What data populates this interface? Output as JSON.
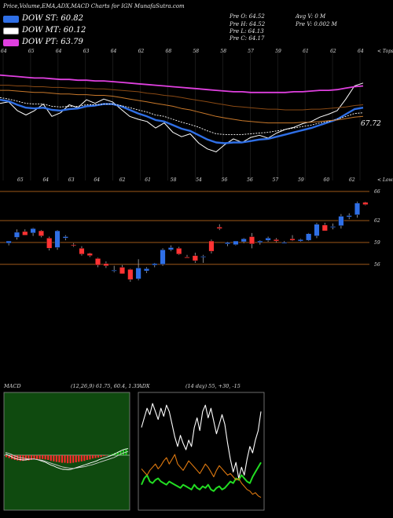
{
  "header": {
    "title": "Price,Volume,EMA,ADX,MACD Charts for IGN",
    "site": "MunafaSutra.com",
    "stats": {
      "open": "Pre  O: 64.52",
      "high": "Pre  H: 64.52",
      "low": "Pre  L: 64.13",
      "close": "Pre  C: 64.17",
      "avg_vol": "Avg V: 0  M",
      "pre_vol": "Pre  V: 0.002  M"
    }
  },
  "legend": [
    {
      "label": "DOW ST: 60.82",
      "color": "#2f6fe6"
    },
    {
      "label": "DOW MT: 60.12",
      "color": "#ffffff"
    },
    {
      "label": "DOW PT: 63.79",
      "color": "#e040e0"
    }
  ],
  "colors": {
    "bg": "#000000",
    "up": "#2f6fe6",
    "down": "#ff3333",
    "grid_orange": "#b5651d",
    "macd_bg": "#0f4a0f",
    "adx_bg": "#000000"
  },
  "chart_data": [
    {
      "type": "line",
      "name": "ema-panel",
      "corner_label": "< Tops",
      "end_value_label": "67.72",
      "top_tick_labels": [
        "64",
        "65",
        "64",
        "63",
        "64",
        "62",
        "68",
        "58",
        "58",
        "57",
        "59",
        "61",
        "62",
        "64"
      ],
      "bottom_tick_labels": [
        "65",
        "64",
        "63",
        "64",
        "62",
        "61",
        "58",
        "54",
        "56",
        "56",
        "57",
        "59",
        "60",
        "62"
      ],
      "series": [
        {
          "name": "price",
          "color": "#ffffff",
          "values": [
            61.4,
            61.6,
            60.4,
            59.8,
            60.4,
            61.3,
            59.6,
            60.1,
            61.2,
            60.8,
            61.9,
            61.4,
            62.0,
            61.6,
            60.6,
            59.6,
            59.2,
            58.9,
            58.0,
            58.7,
            57.4,
            56.8,
            57.2,
            55.9,
            55.1,
            54.7,
            55.7,
            56.5,
            56.0,
            56.7,
            57.0,
            56.6,
            57.3,
            57.8,
            58.1,
            58.6,
            58.9,
            59.5,
            59.9,
            60.4,
            62.0,
            63.8,
            64.2
          ]
        },
        {
          "name": "dow-st",
          "color": "#2f6fe6",
          "values": [
            61.9,
            61.7,
            61.2,
            60.8,
            60.7,
            60.8,
            60.5,
            60.4,
            60.6,
            60.7,
            61.0,
            61.1,
            61.3,
            61.3,
            61.0,
            60.5,
            60.0,
            59.6,
            59.1,
            58.9,
            58.4,
            57.9,
            57.6,
            57.0,
            56.4,
            56.0,
            55.9,
            56.0,
            56.0,
            56.2,
            56.4,
            56.5,
            56.8,
            57.1,
            57.4,
            57.7,
            58.0,
            58.4,
            58.8,
            59.2,
            59.9,
            60.6,
            60.8
          ]
        },
        {
          "name": "dow-mt",
          "color": "#ffffff",
          "values": [
            62.2,
            62.0,
            61.7,
            61.4,
            61.3,
            61.3,
            61.0,
            60.9,
            61.0,
            61.0,
            61.2,
            61.2,
            61.3,
            61.3,
            61.1,
            60.8,
            60.5,
            60.2,
            59.8,
            59.6,
            59.2,
            58.8,
            58.5,
            58.1,
            57.6,
            57.2,
            57.1,
            57.1,
            57.1,
            57.2,
            57.3,
            57.4,
            57.6,
            57.8,
            58.0,
            58.2,
            58.4,
            58.7,
            58.9,
            59.2,
            59.6,
            60.0,
            60.1
          ]
        },
        {
          "name": "dow-pt",
          "color": "#e040e0",
          "values": [
            65.3,
            65.2,
            65.1,
            65.0,
            64.9,
            64.9,
            64.8,
            64.7,
            64.7,
            64.6,
            64.6,
            64.5,
            64.5,
            64.4,
            64.3,
            64.2,
            64.1,
            64.0,
            63.9,
            63.8,
            63.7,
            63.6,
            63.5,
            63.4,
            63.3,
            63.2,
            63.1,
            63.0,
            63.0,
            62.9,
            62.9,
            62.9,
            62.9,
            62.9,
            63.0,
            63.0,
            63.1,
            63.2,
            63.2,
            63.3,
            63.5,
            63.7,
            63.8
          ]
        },
        {
          "name": "ema-orange-1",
          "color": "#c8782a",
          "values": [
            63.2,
            63.2,
            63.1,
            63.0,
            62.9,
            62.9,
            62.8,
            62.7,
            62.7,
            62.6,
            62.6,
            62.5,
            62.5,
            62.4,
            62.2,
            62.0,
            61.8,
            61.6,
            61.4,
            61.2,
            61.0,
            60.7,
            60.5,
            60.2,
            59.9,
            59.6,
            59.4,
            59.2,
            59.0,
            58.9,
            58.8,
            58.7,
            58.7,
            58.7,
            58.7,
            58.8,
            58.8,
            58.9,
            59.0,
            59.1,
            59.3,
            59.5,
            59.6
          ]
        },
        {
          "name": "ema-orange-2",
          "color": "#8a4a14",
          "values": [
            63.9,
            63.9,
            63.8,
            63.8,
            63.7,
            63.7,
            63.6,
            63.6,
            63.5,
            63.5,
            63.5,
            63.4,
            63.4,
            63.3,
            63.2,
            63.1,
            63.0,
            62.8,
            62.7,
            62.5,
            62.4,
            62.2,
            62.0,
            61.8,
            61.6,
            61.4,
            61.2,
            61.0,
            60.9,
            60.8,
            60.7,
            60.6,
            60.6,
            60.5,
            60.5,
            60.5,
            60.6,
            60.6,
            60.7,
            60.8,
            60.9,
            61.1,
            61.2
          ]
        }
      ],
      "ylim": [
        54,
        67
      ]
    },
    {
      "type": "bar",
      "name": "candle-panel",
      "corner_label": "< Lows",
      "right_tick_labels": [
        "66",
        "62",
        "59",
        "56"
      ],
      "ylim": [
        53.5,
        67.5
      ],
      "candles": [
        {
          "o": 58.9,
          "h": 59.1,
          "l": 58.6,
          "c": 59.2
        },
        {
          "o": 59.7,
          "h": 60.8,
          "l": 59.4,
          "c": 60.4
        },
        {
          "o": 60.5,
          "h": 60.8,
          "l": 60.0,
          "c": 60.0
        },
        {
          "o": 60.3,
          "h": 61.0,
          "l": 59.9,
          "c": 60.9
        },
        {
          "o": 60.6,
          "h": 60.7,
          "l": 59.7,
          "c": 59.9
        },
        {
          "o": 59.6,
          "h": 59.8,
          "l": 57.9,
          "c": 58.2
        },
        {
          "o": 58.3,
          "h": 60.7,
          "l": 58.0,
          "c": 60.6
        },
        {
          "o": 59.6,
          "h": 60.0,
          "l": 59.3,
          "c": 59.8
        },
        {
          "o": 58.7,
          "h": 58.9,
          "l": 58.4,
          "c": 58.6
        },
        {
          "o": 58.2,
          "h": 58.5,
          "l": 57.2,
          "c": 57.4
        },
        {
          "o": 57.5,
          "h": 57.6,
          "l": 57.0,
          "c": 57.2
        },
        {
          "o": 56.8,
          "h": 56.9,
          "l": 55.6,
          "c": 55.9
        },
        {
          "o": 56.1,
          "h": 56.4,
          "l": 55.5,
          "c": 55.8
        },
        {
          "o": 55.2,
          "h": 55.8,
          "l": 54.9,
          "c": 55.2
        },
        {
          "o": 55.6,
          "h": 55.9,
          "l": 54.7,
          "c": 54.7
        },
        {
          "o": 55.3,
          "h": 55.4,
          "l": 53.6,
          "c": 53.9
        },
        {
          "o": 54.0,
          "h": 56.7,
          "l": 53.8,
          "c": 55.5
        },
        {
          "o": 55.1,
          "h": 55.6,
          "l": 54.8,
          "c": 55.4
        },
        {
          "o": 55.9,
          "h": 56.2,
          "l": 55.6,
          "c": 56.1
        },
        {
          "o": 56.0,
          "h": 58.2,
          "l": 55.8,
          "c": 58.0
        },
        {
          "o": 58.0,
          "h": 58.6,
          "l": 57.8,
          "c": 58.3
        },
        {
          "o": 58.2,
          "h": 58.4,
          "l": 57.3,
          "c": 57.4
        },
        {
          "o": 57.0,
          "h": 57.3,
          "l": 56.9,
          "c": 56.9
        },
        {
          "o": 57.2,
          "h": 57.6,
          "l": 56.2,
          "c": 56.5
        },
        {
          "o": 57.0,
          "h": 57.3,
          "l": 56.2,
          "c": 57.1
        },
        {
          "o": 59.2,
          "h": 59.4,
          "l": 57.5,
          "c": 57.8
        },
        {
          "o": 61.1,
          "h": 61.5,
          "l": 60.7,
          "c": 60.9
        },
        {
          "o": 58.8,
          "h": 59.1,
          "l": 58.5,
          "c": 59.0
        },
        {
          "o": 58.7,
          "h": 59.2,
          "l": 58.6,
          "c": 59.2
        },
        {
          "o": 59.1,
          "h": 59.6,
          "l": 58.9,
          "c": 59.5
        },
        {
          "o": 59.8,
          "h": 60.3,
          "l": 58.2,
          "c": 58.8
        },
        {
          "o": 59.0,
          "h": 59.3,
          "l": 58.7,
          "c": 59.2
        },
        {
          "o": 59.3,
          "h": 59.8,
          "l": 59.1,
          "c": 59.6
        },
        {
          "o": 59.4,
          "h": 59.6,
          "l": 59.0,
          "c": 59.2
        },
        {
          "o": 59.0,
          "h": 59.2,
          "l": 58.9,
          "c": 59.0
        },
        {
          "o": 59.5,
          "h": 60.0,
          "l": 59.2,
          "c": 59.3
        },
        {
          "o": 59.2,
          "h": 59.5,
          "l": 59.1,
          "c": 59.4
        },
        {
          "o": 59.3,
          "h": 60.3,
          "l": 59.2,
          "c": 60.2
        },
        {
          "o": 59.9,
          "h": 61.7,
          "l": 59.6,
          "c": 61.5
        },
        {
          "o": 61.4,
          "h": 61.7,
          "l": 60.6,
          "c": 60.6
        },
        {
          "o": 61.1,
          "h": 61.6,
          "l": 60.8,
          "c": 61.2
        },
        {
          "o": 61.3,
          "h": 62.9,
          "l": 60.9,
          "c": 62.6
        },
        {
          "o": 62.5,
          "h": 63.0,
          "l": 62.2,
          "c": 62.7
        },
        {
          "o": 62.8,
          "h": 64.6,
          "l": 62.4,
          "c": 64.4
        },
        {
          "o": 64.5,
          "h": 64.6,
          "l": 64.1,
          "c": 64.2
        }
      ]
    },
    {
      "type": "bar",
      "name": "macd-panel",
      "title": "MACD",
      "params": "(12,26,9) 61.75,  60.4,  1.35",
      "histogram": [
        -0.4,
        -0.6,
        -0.8,
        -1.0,
        -1.1,
        -1.2,
        -1.2,
        -1.1,
        -1.1,
        -1.0,
        -0.9,
        -0.9,
        -0.8,
        -0.8,
        -0.9,
        -1.0,
        -1.2,
        -1.3,
        -1.4,
        -1.5,
        -1.6,
        -1.6,
        -1.7,
        -1.7,
        -1.6,
        -1.5,
        -1.4,
        -1.3,
        -1.2,
        -1.0,
        -0.9,
        -0.7,
        -0.6,
        -0.5,
        -0.4,
        -0.2,
        -0.1,
        0.1,
        0.3,
        0.5,
        0.7,
        0.9,
        1.1,
        1.3
      ],
      "series": [
        {
          "name": "macd",
          "color": "#ffffff",
          "values": [
            0.3,
            0.0,
            -0.3,
            -0.6,
            -0.8,
            -0.9,
            -1.0,
            -1.0,
            -0.9,
            -0.8,
            -0.8,
            -0.9,
            -1.1,
            -1.3,
            -1.5,
            -1.8,
            -2.1,
            -2.3,
            -2.6,
            -2.8,
            -3.0,
            -3.0,
            -3.1,
            -3.0,
            -2.8,
            -2.6,
            -2.4,
            -2.2,
            -2.0,
            -1.8,
            -1.6,
            -1.4,
            -1.2,
            -0.9,
            -0.7,
            -0.5,
            -0.3,
            -0.1,
            0.2,
            0.5,
            0.8,
            1.1,
            1.3,
            1.4
          ]
        },
        {
          "name": "signal",
          "color": "#cfcfcf",
          "values": [
            0.6,
            0.4,
            0.2,
            -0.1,
            -0.3,
            -0.5,
            -0.6,
            -0.7,
            -0.8,
            -0.8,
            -0.8,
            -0.9,
            -1.0,
            -1.1,
            -1.3,
            -1.5,
            -1.7,
            -1.9,
            -2.1,
            -2.3,
            -2.5,
            -2.6,
            -2.7,
            -2.8,
            -2.8,
            -2.7,
            -2.6,
            -2.5,
            -2.4,
            -2.2,
            -2.1,
            -1.9,
            -1.7,
            -1.5,
            -1.3,
            -1.1,
            -0.9,
            -0.7,
            -0.5,
            -0.2,
            0.1,
            0.4,
            0.6,
            0.8
          ]
        }
      ]
    },
    {
      "type": "line",
      "name": "adx-panel",
      "title": "ADX",
      "params": "(14  day) 55,  +30,  -15",
      "series": [
        {
          "name": "adx",
          "color": "#ffffff",
          "values": [
            50,
            56,
            62,
            58,
            65,
            60,
            55,
            62,
            57,
            64,
            60,
            52,
            44,
            38,
            45,
            40,
            36,
            42,
            38,
            50,
            56,
            48,
            60,
            64,
            56,
            62,
            54,
            46,
            52,
            58,
            52,
            40,
            30,
            22,
            28,
            18,
            25,
            20,
            30,
            38,
            34,
            42,
            48,
            60
          ]
        },
        {
          "name": "plus-di",
          "color": "#22dd22",
          "values": [
            14,
            18,
            20,
            16,
            15,
            17,
            18,
            16,
            15,
            14,
            16,
            15,
            14,
            13,
            12,
            14,
            13,
            12,
            11,
            14,
            12,
            11,
            13,
            12,
            14,
            11,
            10,
            12,
            13,
            11,
            12,
            14,
            16,
            15,
            18,
            17,
            20,
            18,
            16,
            15,
            19,
            22,
            25,
            28
          ]
        },
        {
          "name": "minus-di",
          "color": "#e07a10",
          "values": [
            24,
            22,
            20,
            23,
            25,
            27,
            24,
            26,
            29,
            31,
            27,
            30,
            33,
            27,
            25,
            23,
            26,
            29,
            27,
            25,
            23,
            21,
            24,
            27,
            25,
            22,
            19,
            23,
            26,
            24,
            22,
            20,
            21,
            19,
            17,
            18,
            15,
            13,
            11,
            10,
            8,
            9,
            7,
            6
          ]
        }
      ]
    }
  ]
}
